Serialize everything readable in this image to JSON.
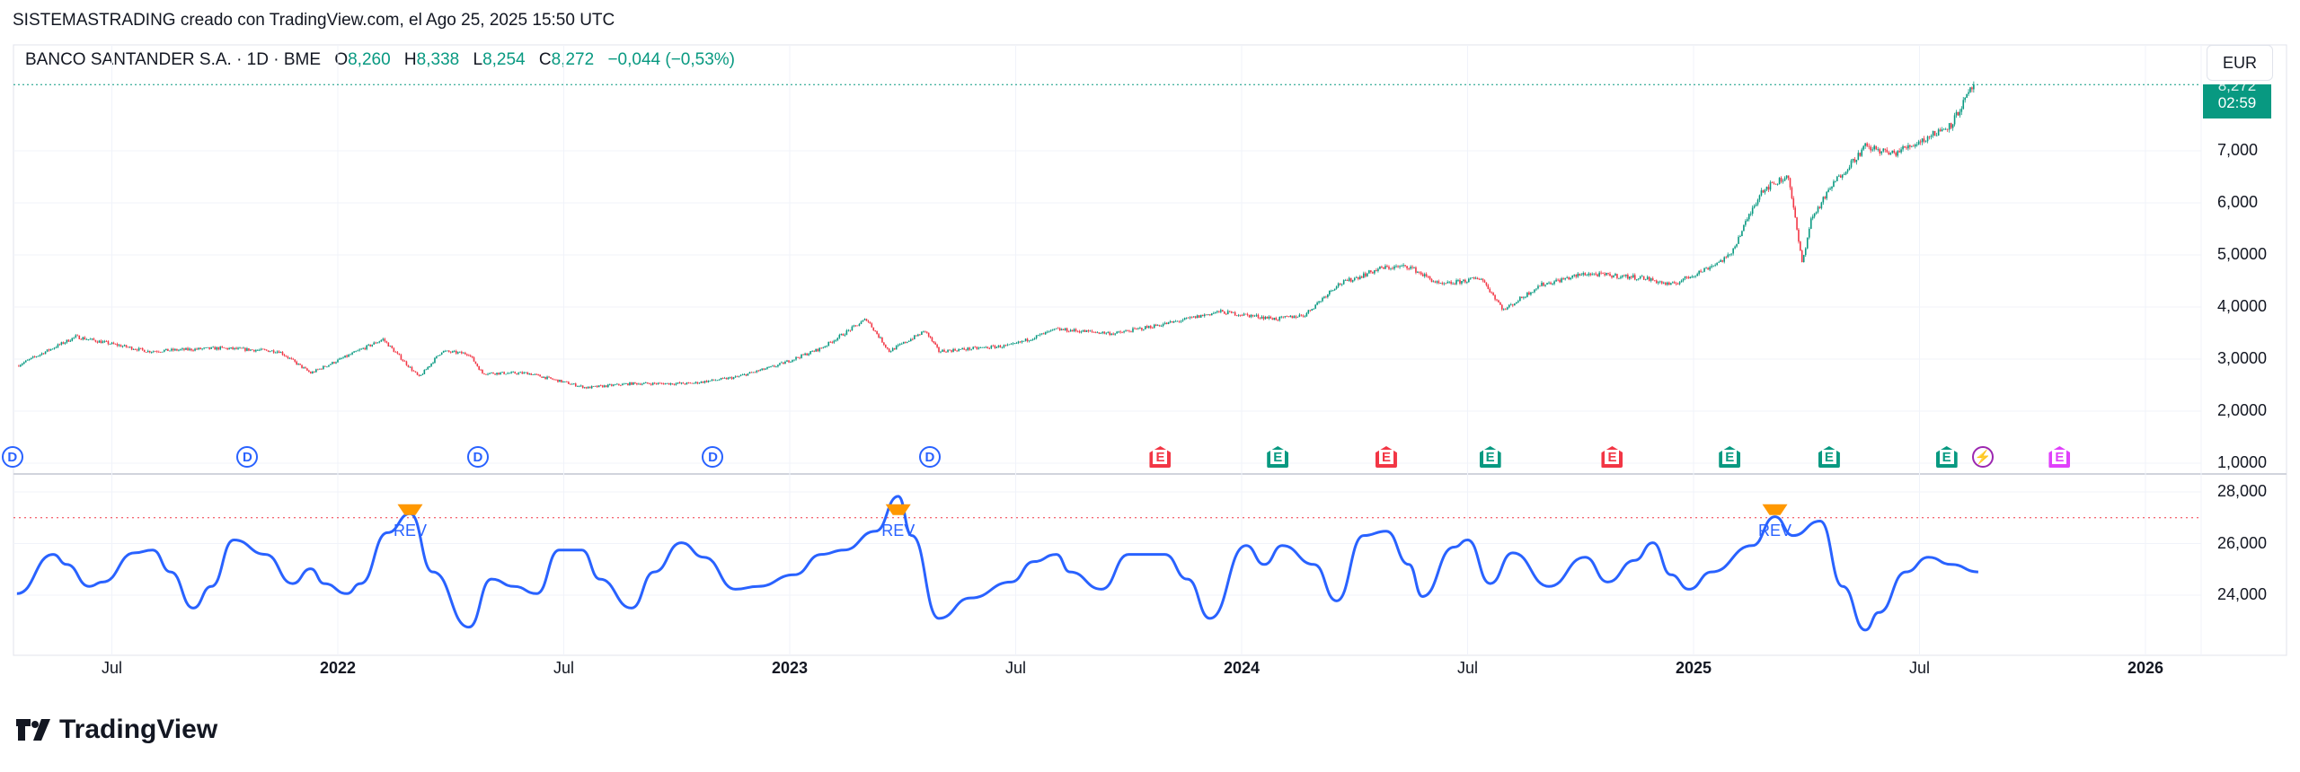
{
  "credit": "SISTEMASTRADING creado con TradingView.com, el Ago 25, 2025 15:50 UTC",
  "legend": {
    "symbol": "BANCO SANTANDER S.A. · 1D · BME",
    "o_label": "O",
    "o": "8,260",
    "h_label": "H",
    "h": "8,338",
    "l_label": "L",
    "l": "8,254",
    "c_label": "C",
    "c": "8,272",
    "change": "−0,044 (−0,53%)"
  },
  "currency": "EUR",
  "price_tag": {
    "price": "8,272",
    "countdown": "02:59"
  },
  "colors": {
    "up": "#089981",
    "down": "#f23645",
    "osc": "#2962ff",
    "signal": "#ff9800",
    "threshold": "#f23645",
    "dividend": "#2962ff",
    "earn_good": "#089981",
    "earn_bad": "#f23645",
    "earn_next": "#e040fb"
  },
  "price_axis": [
    "7,000",
    "6,000",
    "5,0000",
    "4,0000",
    "3,0000",
    "2,0000",
    "1,0000"
  ],
  "osc_axis": [
    "28,000",
    "26,000",
    "24,000"
  ],
  "time_axis": [
    {
      "label": "Jul",
      "bold": false,
      "t": 2021.5
    },
    {
      "label": "2022",
      "bold": true,
      "t": 2022
    },
    {
      "label": "Jul",
      "bold": false,
      "t": 2022.5
    },
    {
      "label": "2023",
      "bold": true,
      "t": 2023
    },
    {
      "label": "Jul",
      "bold": false,
      "t": 2023.5
    },
    {
      "label": "2024",
      "bold": true,
      "t": 2024
    },
    {
      "label": "Jul",
      "bold": false,
      "t": 2024.5
    },
    {
      "label": "2025",
      "bold": true,
      "t": 2025
    },
    {
      "label": "Jul",
      "bold": false,
      "t": 2025.5
    },
    {
      "label": "2026",
      "bold": true,
      "t": 2026
    }
  ],
  "events": [
    {
      "type": "D",
      "t": 2021.28,
      "kind": "d"
    },
    {
      "type": "D",
      "t": 2021.8,
      "kind": "d"
    },
    {
      "type": "D",
      "t": 2022.31,
      "kind": "d"
    },
    {
      "type": "D",
      "t": 2022.83,
      "kind": "d"
    },
    {
      "type": "D",
      "t": 2023.31,
      "kind": "d"
    },
    {
      "type": "E",
      "t": 2023.82,
      "kind": "bad"
    },
    {
      "type": "E",
      "t": 2024.08,
      "kind": "good"
    },
    {
      "type": "E",
      "t": 2024.32,
      "kind": "bad"
    },
    {
      "type": "E",
      "t": 2024.55,
      "kind": "good"
    },
    {
      "type": "E",
      "t": 2024.82,
      "kind": "bad"
    },
    {
      "type": "E",
      "t": 2025.08,
      "kind": "good"
    },
    {
      "type": "E",
      "t": 2025.3,
      "kind": "good"
    },
    {
      "type": "E",
      "t": 2025.56,
      "kind": "good"
    },
    {
      "type": "⚡",
      "t": 2025.64,
      "kind": "flash"
    },
    {
      "type": "E",
      "t": 2025.81,
      "kind": "next"
    }
  ],
  "logo": "TradingView",
  "chart_data": [
    {
      "type": "candlestick",
      "title": "BANCO SANTANDER S.A. · 1D · BME",
      "ylabel": "EUR",
      "ylim": [
        0.85,
        8.4
      ],
      "last": 8.272,
      "x": [
        2021.29,
        2021.42,
        2021.58,
        2021.74,
        2021.87,
        2021.94,
        2022.1,
        2022.18,
        2022.23,
        2022.29,
        2022.32,
        2022.42,
        2022.55,
        2022.65,
        2022.78,
        2022.88,
        2022.97,
        2023.07,
        2023.17,
        2023.22,
        2023.3,
        2023.33,
        2023.49,
        2023.59,
        2023.72,
        2023.85,
        2023.95,
        2024.08,
        2024.14,
        2024.21,
        2024.31,
        2024.37,
        2024.44,
        2024.53,
        2024.58,
        2024.66,
        2024.76,
        2024.89,
        2024.95,
        2025.02,
        2025.08,
        2025.15,
        2025.21,
        2025.24,
        2025.26,
        2025.31,
        2025.38,
        2025.44,
        2025.51,
        2025.57,
        2025.62
      ],
      "close": [
        2.87,
        3.43,
        3.15,
        3.21,
        3.15,
        2.73,
        3.38,
        2.65,
        3.15,
        3.1,
        2.73,
        2.73,
        2.45,
        2.53,
        2.53,
        2.65,
        2.87,
        3.21,
        3.77,
        3.15,
        3.54,
        3.15,
        3.26,
        3.57,
        3.49,
        3.71,
        3.91,
        3.77,
        3.85,
        4.42,
        4.75,
        4.78,
        4.42,
        4.56,
        3.94,
        4.42,
        4.64,
        4.56,
        4.42,
        4.7,
        4.98,
        6.24,
        6.52,
        4.84,
        5.68,
        6.38,
        7.08,
        6.94,
        7.22,
        7.51,
        8.26
      ]
    },
    {
      "type": "line",
      "title": "oscillator",
      "ylim": [
        21800,
        28600
      ],
      "threshold": 27000,
      "signals": [
        {
          "t": 2022.16,
          "label": "REV"
        },
        {
          "t": 2023.24,
          "label": "REV"
        },
        {
          "t": 2025.18,
          "label": "REV"
        }
      ],
      "x": [
        2021.29,
        2021.37,
        2021.4,
        2021.45,
        2021.48,
        2021.55,
        2021.59,
        2021.63,
        2021.68,
        2021.72,
        2021.77,
        2021.84,
        2021.9,
        2021.94,
        2021.97,
        2022.02,
        2022.05,
        2022.11,
        2022.16,
        2022.21,
        2022.29,
        2022.34,
        2022.39,
        2022.44,
        2022.49,
        2022.54,
        2022.58,
        2022.65,
        2022.7,
        2022.76,
        2022.81,
        2022.88,
        2022.93,
        2023.01,
        2023.07,
        2023.12,
        2023.19,
        2023.24,
        2023.27,
        2023.33,
        2023.4,
        2023.49,
        2023.54,
        2023.59,
        2023.62,
        2023.69,
        2023.75,
        2023.83,
        2023.88,
        2023.93,
        2024.01,
        2024.05,
        2024.09,
        2024.16,
        2024.21,
        2024.27,
        2024.32,
        2024.37,
        2024.4,
        2024.47,
        2024.5,
        2024.55,
        2024.6,
        2024.68,
        2024.76,
        2024.81,
        2024.87,
        2024.91,
        2024.95,
        2024.99,
        2025.04,
        2025.13,
        2025.18,
        2025.22,
        2025.28,
        2025.33,
        2025.38,
        2025.41,
        2025.47,
        2025.52,
        2025.57,
        2025.63
      ],
      "values": [
        24060,
        25580,
        25190,
        24340,
        24510,
        25640,
        25750,
        24900,
        23500,
        24340,
        26140,
        25580,
        24450,
        25020,
        24450,
        24060,
        24450,
        26420,
        27160,
        24900,
        22760,
        24620,
        24340,
        24060,
        25750,
        25750,
        24620,
        23500,
        24900,
        26030,
        25470,
        24230,
        24340,
        24790,
        25580,
        25750,
        26480,
        27830,
        26310,
        23100,
        23890,
        24510,
        25300,
        25580,
        24900,
        24230,
        25580,
        25580,
        24620,
        23100,
        25920,
        25190,
        25920,
        25190,
        23780,
        26310,
        26480,
        25190,
        23950,
        25860,
        26140,
        24450,
        25640,
        24340,
        25470,
        24510,
        25350,
        26030,
        24790,
        24230,
        24900,
        25920,
        27040,
        26310,
        26870,
        24340,
        22650,
        23330,
        24900,
        25470,
        25190,
        24900
      ]
    }
  ]
}
